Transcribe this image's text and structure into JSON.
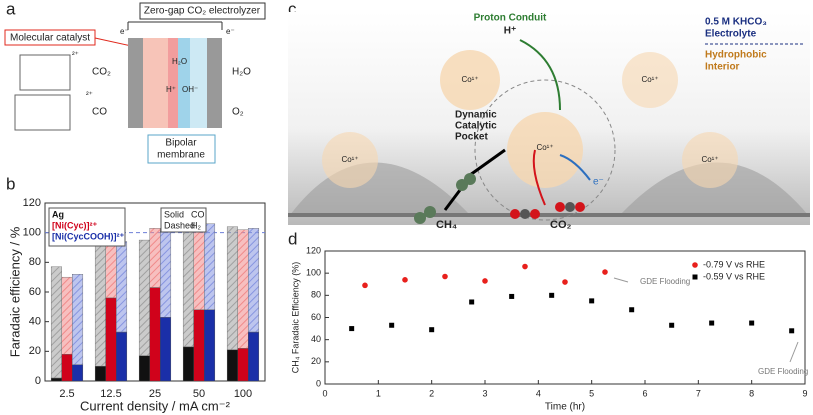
{
  "panel_labels": [
    "a",
    "b",
    "c",
    "d"
  ],
  "panel_a": {
    "title": "Zero-gap CO₂ electrolyzer",
    "catalyst_label": "Molecular catalyst",
    "membrane_label": [
      "Bipolar",
      "membrane"
    ],
    "left_labels": [
      "CO₂",
      "CO"
    ],
    "right_labels": [
      "H₂O",
      "O₂"
    ],
    "electron_labels": [
      "e⁻",
      "e⁻"
    ],
    "center_labels": [
      "H₂O",
      "H⁺",
      "OH⁻"
    ],
    "charges": [
      "²⁺",
      "²⁺"
    ]
  },
  "panel_c": {
    "proton_conduit": "Proton Conduit",
    "proton": "H⁺",
    "electrolyte": [
      "0.5 M KHCO₃",
      "Electrolyte"
    ],
    "interior": [
      "Hydrophobic",
      "Interior"
    ],
    "pocket": [
      "Dynamic",
      "Catalytic",
      "Pocket"
    ],
    "product": "CH₄",
    "reactant": "CO₂",
    "electron": "e⁻",
    "metal_labels": [
      "Co¹⁺",
      "Co¹⁺",
      "Co¹⁺",
      "Co¹⁺",
      "Co¹⁺"
    ]
  },
  "chart_data": [
    {
      "type": "bar",
      "stacked": true,
      "ylabel": "Faradaic efficiency / %",
      "xlabel": "Current density / mA cm⁻²",
      "categories": [
        "2.5",
        "12.5",
        "25",
        "50",
        "100"
      ],
      "ylim": [
        0,
        120
      ],
      "yticks": [
        0,
        20,
        40,
        60,
        80,
        100,
        120
      ],
      "reference_line": 100,
      "series": [
        {
          "name": "Ag",
          "color": "#111111",
          "h2_color": "#a0a0a0",
          "values": [
            2,
            10,
            17,
            23,
            21
          ],
          "h2_values": [
            75,
            85,
            78,
            84,
            83
          ]
        },
        {
          "name": "[Ni(Cyc)]²⁺",
          "color": "#d0021b",
          "h2_color": "#f08a8a",
          "values": [
            18,
            56,
            63,
            48,
            22
          ],
          "h2_values": [
            52,
            38,
            40,
            59,
            80
          ]
        },
        {
          "name": "[Ni(CycCOOH)]²⁺",
          "color": "#1a2fa8",
          "h2_color": "#8795e0",
          "values": [
            11,
            33,
            43,
            48,
            33
          ],
          "h2_values": [
            61,
            61,
            58,
            58,
            70
          ]
        }
      ],
      "style_legend": [
        {
          "label": "Solid",
          "component": "CO"
        },
        {
          "label": "Dashed",
          "component": "H₂"
        }
      ]
    },
    {
      "type": "scatter",
      "xlabel": "Time (hr)",
      "ylabel": "CH₄ Faradaic Efficiency (%)",
      "xlim": [
        0,
        9
      ],
      "xticks": [
        0,
        1,
        2,
        3,
        4,
        5,
        6,
        7,
        8,
        9
      ],
      "ylim": [
        0,
        120
      ],
      "yticks": [
        0,
        20,
        40,
        60,
        80,
        100,
        120
      ],
      "legend": "upper right",
      "series": [
        {
          "name": "-0.79 V vs RHE",
          "color": "#e8201c",
          "marker": "circle",
          "x": [
            0.75,
            1.5,
            2.25,
            3,
            3.75,
            4.5,
            5.25
          ],
          "values": [
            89,
            94,
            97,
            93,
            106,
            92,
            101
          ]
        },
        {
          "name": "-0.59 V vs RHE",
          "color": "#000000",
          "marker": "square",
          "x": [
            0.5,
            1.25,
            2,
            2.75,
            3.5,
            4.25,
            5,
            5.75,
            6.5,
            7.25,
            8,
            8.75
          ],
          "values": [
            50,
            53,
            49,
            74,
            79,
            80,
            75,
            67,
            53,
            55,
            55,
            48
          ]
        }
      ],
      "annotations": [
        "GDE Flooding",
        "GDE Flooding"
      ]
    }
  ]
}
